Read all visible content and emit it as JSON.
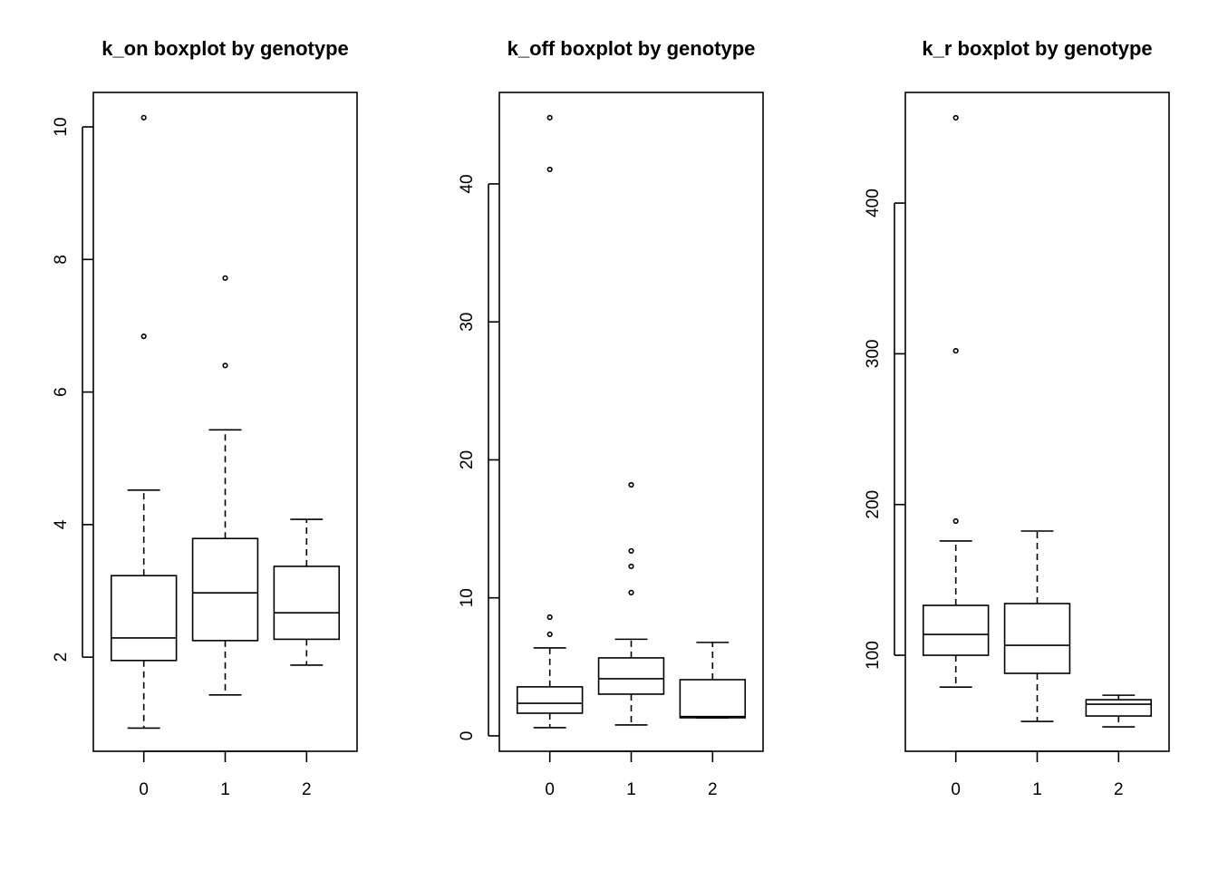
{
  "chart_data": [
    {
      "type": "boxplot",
      "title": "k_on boxplot by genotype",
      "categories": [
        "0",
        "1",
        "2"
      ],
      "boxes": [
        {
          "whisker_low": 0.93,
          "q1": 1.95,
          "median": 2.29,
          "q3": 3.23,
          "whisker_high": 4.52,
          "outliers": [
            6.84,
            10.14
          ]
        },
        {
          "whisker_low": 1.43,
          "q1": 2.25,
          "median": 2.97,
          "q3": 3.79,
          "whisker_high": 5.43,
          "outliers": [
            6.4,
            7.72
          ]
        },
        {
          "whisker_low": 1.88,
          "q1": 2.27,
          "median": 2.67,
          "q3": 3.37,
          "whisker_high": 4.08,
          "outliers": []
        }
      ],
      "ylim": [
        0.58,
        10.52
      ],
      "yticks": [
        2,
        4,
        6,
        8,
        10
      ]
    },
    {
      "type": "boxplot",
      "title": "k_off boxplot by genotype",
      "categories": [
        "0",
        "1",
        "2"
      ],
      "boxes": [
        {
          "whisker_low": 0.59,
          "q1": 1.64,
          "median": 2.36,
          "q3": 3.55,
          "whisker_high": 6.37,
          "outliers": [
            7.36,
            8.6,
            41.05,
            44.8
          ]
        },
        {
          "whisker_low": 0.79,
          "q1": 3.02,
          "median": 4.14,
          "q3": 5.65,
          "whisker_high": 7.0,
          "outliers": [
            10.38,
            12.28,
            13.4,
            18.19
          ]
        },
        {
          "whisker_low": 1.3,
          "q1": 1.31,
          "median": 1.4,
          "q3": 4.07,
          "whisker_high": 6.77,
          "outliers": []
        }
      ],
      "ylim": [
        -1.12,
        46.63
      ],
      "yticks": [
        0,
        10,
        20,
        30,
        40
      ]
    },
    {
      "type": "boxplot",
      "title": "k_r boxplot by genotype",
      "categories": [
        "0",
        "1",
        "2"
      ],
      "boxes": [
        {
          "whisker_low": 78.9,
          "q1": 100,
          "median": 113.8,
          "q3": 133.1,
          "whisker_high": 175.8,
          "outliers": [
            189,
            302,
            456.6
          ]
        },
        {
          "whisker_low": 56.1,
          "q1": 88,
          "median": 106.6,
          "q3": 134.3,
          "whisker_high": 182.4,
          "outliers": []
        },
        {
          "whisker_low": 52.5,
          "q1": 59.7,
          "median": 67.5,
          "q3": 70.5,
          "whisker_high": 73.5,
          "outliers": []
        }
      ],
      "ylim": [
        36.3,
        473.4
      ],
      "yticks": [
        100,
        200,
        300,
        400
      ]
    }
  ]
}
